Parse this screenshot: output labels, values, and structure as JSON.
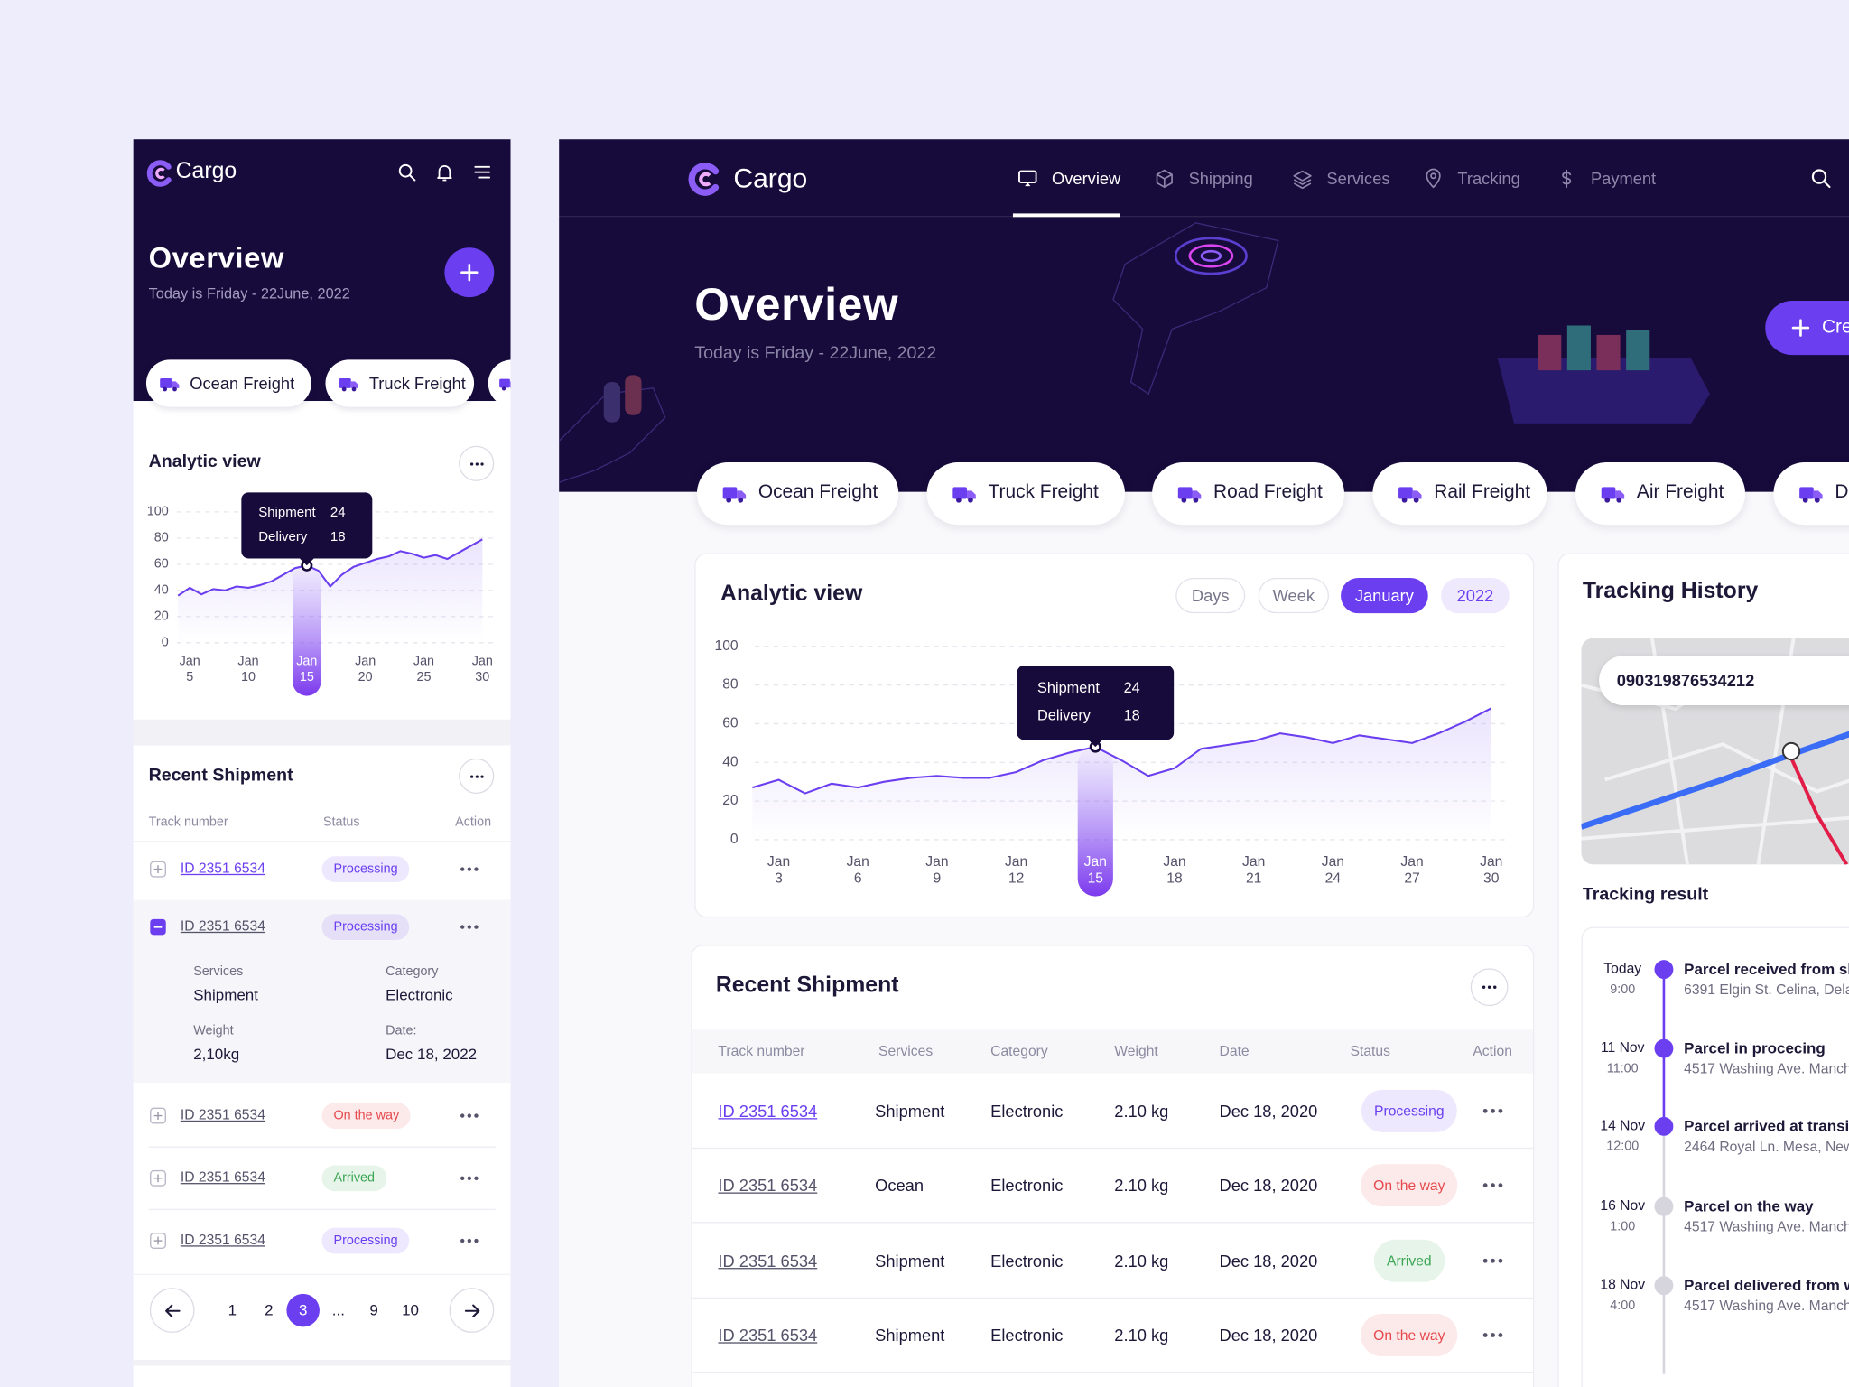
{
  "chart_data": [
    {
      "type": "line",
      "title": "Analytic view",
      "x": [
        2,
        3,
        4,
        5,
        6,
        7,
        8,
        9,
        10,
        11,
        12,
        13,
        14,
        15,
        16,
        17,
        18,
        19,
        20,
        21,
        22,
        23,
        24,
        25,
        26,
        27,
        28,
        29,
        30
      ],
      "values": [
        27,
        31,
        24,
        29,
        27,
        30,
        32,
        33,
        32,
        32,
        35,
        41,
        45,
        48,
        41,
        33,
        37,
        47,
        49,
        51,
        55,
        53,
        50,
        54,
        52,
        50,
        55,
        61,
        68
      ],
      "color": "#6b3ff0",
      "xlim": [
        2,
        31
      ],
      "ylim": [
        0,
        100
      ],
      "yticks": [
        0,
        20,
        40,
        60,
        80,
        100
      ],
      "xticks": [
        {
          "value": 3,
          "label": "Jan 3"
        },
        {
          "value": 6,
          "label": "Jan 6"
        },
        {
          "value": 9,
          "label": "Jan 9"
        },
        {
          "value": 12,
          "label": "Jan 12"
        },
        {
          "value": 15,
          "label": "Jan 15"
        },
        {
          "value": 18,
          "label": "Jan 18"
        },
        {
          "value": 21,
          "label": "Jan 21"
        },
        {
          "value": 24,
          "label": "Jan 24"
        },
        {
          "value": 27,
          "label": "Jan 27"
        },
        {
          "value": 30,
          "label": "Jan 30"
        }
      ],
      "grid": true,
      "highlight_x": 15,
      "tooltip": [
        {
          "label": "Shipment",
          "value": 24
        },
        {
          "label": "Delivery",
          "value": 18
        }
      ]
    },
    {
      "type": "line",
      "title": "Analytic view",
      "x": [
        4,
        5,
        6,
        7,
        8,
        9,
        10,
        11,
        12,
        13,
        14,
        15,
        16,
        17,
        18,
        19,
        20,
        21,
        22,
        23,
        24,
        25,
        26,
        27,
        28,
        29,
        30
      ],
      "values": [
        36,
        42,
        37,
        41,
        40,
        43,
        42,
        44,
        47,
        52,
        57,
        59,
        55,
        43,
        52,
        58,
        61,
        64,
        66,
        70,
        68,
        65,
        67,
        64,
        69,
        74,
        79
      ],
      "color": "#6b3ff0",
      "xlim": [
        4,
        31
      ],
      "ylim": [
        0,
        100
      ],
      "yticks": [
        0,
        20,
        40,
        60,
        80,
        100
      ],
      "xticks": [
        {
          "value": 5,
          "label": "Jan 5"
        },
        {
          "value": 10,
          "label": "Jan 10"
        },
        {
          "value": 15,
          "label": "Jan 15"
        },
        {
          "value": 20,
          "label": "Jan 20"
        },
        {
          "value": 25,
          "label": "Jan 25"
        },
        {
          "value": 30,
          "label": "Jan 30"
        }
      ],
      "grid": true,
      "highlight_x": 15,
      "tooltip": [
        {
          "label": "Shipment",
          "value": 24
        },
        {
          "label": "Delivery",
          "value": 18
        }
      ]
    }
  ],
  "mobile": {
    "brand": "Cargo",
    "title": "Overview",
    "date": "Today is Friday - 22June, 2022",
    "freight": [
      "Ocean Freight",
      "Truck Freight"
    ],
    "shipment": {
      "title": "Recent Shipment",
      "columns": [
        "Track number",
        "Status",
        "Action"
      ],
      "rows": [
        {
          "id": "ID 2351 6534",
          "status": "Processing",
          "color": "#6b3ff0"
        },
        {
          "id": "ID 2351 6534",
          "status": "Processing",
          "color": "#6b3ff0"
        },
        {
          "id": "ID 2351 6534",
          "status": "On the way",
          "color": "#e5484d"
        },
        {
          "id": "ID 2351 6534",
          "status": "Arrived",
          "color": "#3aa655"
        },
        {
          "id": "ID 2351 6534",
          "status": "Processing",
          "color": "#6b3ff0"
        }
      ],
      "details": [
        {
          "label": "Services",
          "value": "Shipment"
        },
        {
          "label": "Category",
          "value": "Electronic"
        },
        {
          "label": "Weight",
          "value": "2,10kg"
        },
        {
          "label": "Date:",
          "value": "Dec 18, 2022"
        }
      ]
    },
    "pages": [
      1,
      2,
      3,
      "...",
      9,
      10
    ]
  },
  "desktop": {
    "brand": "Cargo",
    "nav": [
      "Overview",
      "Shipping",
      "Services",
      "Tracking",
      "Payment"
    ],
    "title": "Overview",
    "date": "Today is Friday - 22June, 2022",
    "create": "Cre",
    "freight": [
      "Ocean Freight",
      "Truck Freight",
      "Road Freight",
      "Rail Freight",
      "Air Freight",
      "Dr"
    ],
    "periods": [
      "Days",
      "Week",
      "January",
      "2022"
    ],
    "shipment": {
      "title": "Recent Shipment",
      "columns": [
        "Track number",
        "Services",
        "Category",
        "Weight",
        "Date",
        "Status",
        "Action"
      ],
      "rows": [
        {
          "id": "ID 2351 6534",
          "service": "Shipment",
          "category": "Electronic",
          "weight": "2.10 kg",
          "date": "Dec 18, 2020",
          "status": "Processing",
          "color": "#6b3ff0"
        },
        {
          "id": "ID 2351 6534",
          "service": "Ocean",
          "category": "Electronic",
          "weight": "2.10 kg",
          "date": "Dec 18, 2020",
          "status": "On the way",
          "color": "#e5484d"
        },
        {
          "id": "ID 2351 6534",
          "service": "Shipment",
          "category": "Electronic",
          "weight": "2.10 kg",
          "date": "Dec 18, 2020",
          "status": "Arrived",
          "color": "#3aa655"
        },
        {
          "id": "ID 2351 6534",
          "service": "Shipment",
          "category": "Electronic",
          "weight": "2.10 kg",
          "date": "Dec 18, 2020",
          "status": "On the way",
          "color": "#e5484d"
        }
      ]
    },
    "tracking": {
      "title": "Tracking History",
      "number": "090319876534212",
      "result": "Tracking result",
      "events": [
        {
          "date": "Today",
          "time": "9:00",
          "title": "Parcel received from sh",
          "address": "6391 Elgin St. Celina, Delaw",
          "color": "#6b3ff0"
        },
        {
          "date": "11 Nov",
          "time": "11:00",
          "title": "Parcel in procecing",
          "address": "4517 Washing Ave. Manche",
          "color": "#6b3ff0"
        },
        {
          "date": "14 Nov",
          "time": "12:00",
          "title": "Parcel arrived at transi",
          "address": "2464 Royal Ln. Mesa, New",
          "color": "#6b3ff0"
        },
        {
          "date": "16 Nov",
          "time": "1:00",
          "title": "Parcel on the way",
          "address": "4517 Washing Ave. Manche",
          "color": "#d6d5dd"
        },
        {
          "date": "18 Nov",
          "time": "4:00",
          "title": "Parcel delivered from w",
          "address": "4517 Washing Ave. Manche",
          "color": "#d6d5dd"
        }
      ]
    }
  }
}
